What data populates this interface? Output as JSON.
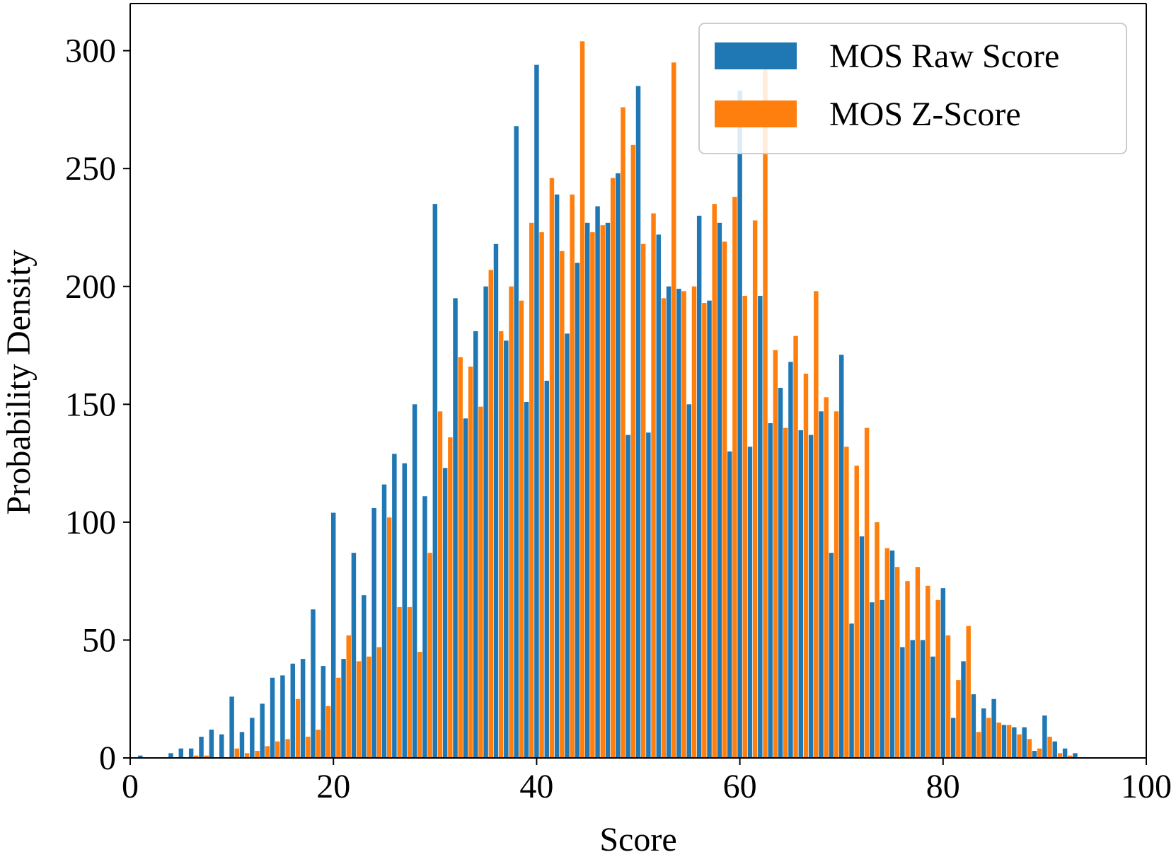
{
  "chart_data": {
    "type": "bar",
    "xlabel": "Score",
    "ylabel": "Probability Density",
    "xlim": [
      0,
      100
    ],
    "ylim": [
      0,
      320
    ],
    "xticks": [
      0,
      20,
      40,
      60,
      80,
      100
    ],
    "yticks": [
      0,
      50,
      100,
      150,
      200,
      250,
      300
    ],
    "grid": false,
    "legend_position": "upper-right",
    "series": [
      {
        "name": "MOS Raw Score",
        "color": "#1f77b4",
        "bin_width": 1,
        "x": [
          1,
          2,
          3,
          4,
          5,
          6,
          7,
          8,
          9,
          10,
          11,
          12,
          13,
          14,
          15,
          16,
          17,
          18,
          19,
          20,
          21,
          22,
          23,
          24,
          25,
          26,
          27,
          28,
          29,
          30,
          31,
          32,
          33,
          34,
          35,
          36,
          37,
          38,
          39,
          40,
          41,
          42,
          43,
          44,
          45,
          46,
          47,
          48,
          49,
          50,
          51,
          52,
          53,
          54,
          55,
          56,
          57,
          58,
          59,
          60,
          61,
          62,
          63,
          64,
          65,
          66,
          67,
          68,
          69,
          70,
          71,
          72,
          73,
          74,
          75,
          76,
          77,
          78,
          79,
          80,
          81,
          82,
          83,
          84,
          85,
          86,
          87,
          88,
          89,
          90,
          91,
          92,
          93
        ],
        "values": [
          1,
          0,
          0,
          2,
          4,
          4,
          9,
          12,
          10,
          26,
          11,
          17,
          23,
          34,
          35,
          40,
          42,
          63,
          39,
          104,
          42,
          87,
          69,
          106,
          116,
          129,
          125,
          150,
          111,
          235,
          123,
          195,
          144,
          181,
          200,
          218,
          177,
          268,
          151,
          294,
          160,
          239,
          180,
          210,
          227,
          234,
          227,
          248,
          137,
          285,
          138,
          222,
          200,
          199,
          150,
          230,
          194,
          227,
          130,
          283,
          132,
          196,
          142,
          157,
          168,
          139,
          137,
          147,
          87,
          171,
          57,
          94,
          66,
          67,
          88,
          47,
          50,
          50,
          43,
          72,
          17,
          41,
          27,
          21,
          25,
          14,
          13,
          13,
          3,
          18,
          7,
          4,
          2
        ]
      },
      {
        "name": "MOS Z-Score",
        "color": "#ff7f0e",
        "bin_width": 1,
        "x": [
          1.5,
          2.5,
          3.5,
          4.5,
          5.5,
          6.5,
          7.5,
          8.5,
          9.5,
          10.5,
          11.5,
          12.5,
          13.5,
          14.5,
          15.5,
          16.5,
          17.5,
          18.5,
          19.5,
          20.5,
          21.5,
          22.5,
          23.5,
          24.5,
          25.5,
          26.5,
          27.5,
          28.5,
          29.5,
          30.5,
          31.5,
          32.5,
          33.5,
          34.5,
          35.5,
          36.5,
          37.5,
          38.5,
          39.5,
          40.5,
          41.5,
          42.5,
          43.5,
          44.5,
          45.5,
          46.5,
          47.5,
          48.5,
          49.5,
          50.5,
          51.5,
          52.5,
          53.5,
          54.5,
          55.5,
          56.5,
          57.5,
          58.5,
          59.5,
          60.5,
          61.5,
          62.5,
          63.5,
          64.5,
          65.5,
          66.5,
          67.5,
          68.5,
          69.5,
          70.5,
          71.5,
          72.5,
          73.5,
          74.5,
          75.5,
          76.5,
          77.5,
          78.5,
          79.5,
          80.5,
          81.5,
          82.5,
          83.5,
          84.5,
          85.5,
          86.5,
          87.5,
          88.5,
          89.5,
          90.5,
          91.5,
          92.5
        ],
        "values": [
          0,
          0,
          0,
          0,
          0,
          1,
          1,
          0,
          0,
          4,
          2,
          3,
          5,
          7,
          8,
          25,
          9,
          12,
          22,
          34,
          52,
          41,
          43,
          47,
          102,
          64,
          64,
          45,
          87,
          147,
          136,
          170,
          166,
          149,
          207,
          181,
          200,
          194,
          227,
          223,
          246,
          215,
          239,
          304,
          223,
          226,
          246,
          276,
          260,
          218,
          231,
          195,
          295,
          198,
          200,
          193,
          235,
          219,
          238,
          196,
          228,
          292,
          173,
          140,
          179,
          163,
          198,
          153,
          147,
          132,
          124,
          140,
          100,
          89,
          81,
          75,
          81,
          73,
          67,
          52,
          33,
          56,
          11,
          17,
          15,
          14,
          10,
          8,
          4,
          9,
          2,
          1
        ]
      }
    ]
  }
}
